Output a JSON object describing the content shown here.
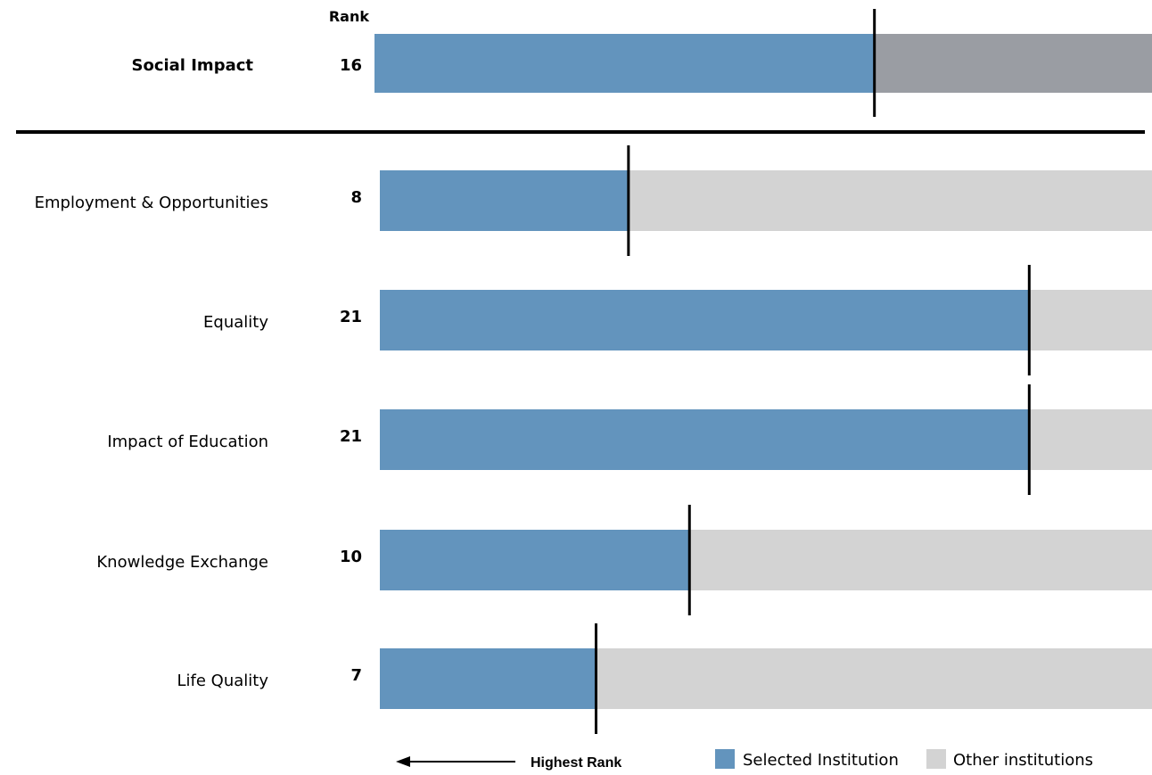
{
  "chart_data": {
    "type": "bar",
    "rank_header": "Rank",
    "overall": {
      "category": "Social Impact",
      "rank": 16,
      "position_fraction": 0.643
    },
    "categories": [
      "Employment & Opportunities",
      "Equality",
      "Impact of Education",
      "Knowledge Exchange",
      "Life Quality"
    ],
    "ranks": [
      8,
      21,
      21,
      10,
      7
    ],
    "position_fractions": [
      0.322,
      0.841,
      0.841,
      0.401,
      0.28
    ],
    "series": [
      {
        "name": "Selected Institution",
        "color": "#6394bd"
      },
      {
        "name": "Other institutions",
        "color": "#d3d3d3"
      }
    ],
    "overall_rest_color": "#9a9da3",
    "direction_note": "Highest Rank",
    "direction_icon": "arrow-left-icon",
    "legend_placement": "bottom-right"
  }
}
